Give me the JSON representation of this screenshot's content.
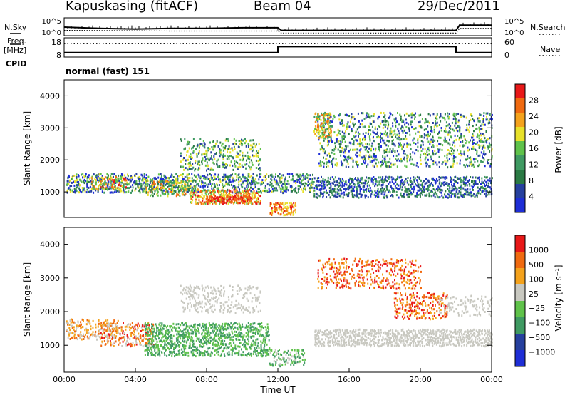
{
  "header": {
    "station": "Kapuskasing (fitACF)",
    "beam": "Beam 04",
    "date": "29/Dec/2011"
  },
  "side_labels": {
    "nsky": "N.Sky",
    "freq": "Freq.",
    "freq_unit": "[MHz]",
    "cpid": "CPID",
    "nsearch": "N.Search",
    "nave": "Nave"
  },
  "cpid_text": "normal (fast) 151",
  "colors": {
    "power": [
      "#1e2ed6",
      "#26409e",
      "#2a7a44",
      "#3f9a62",
      "#5fc24a",
      "#e8e12a",
      "#f4a21c",
      "#f06a10",
      "#e81818"
    ],
    "velocity": [
      "#e81818",
      "#f06a10",
      "#f4a21c",
      "#c8c8c0",
      "#5fc24a",
      "#3f9a62",
      "#26409e",
      "#1e2ed6"
    ]
  },
  "chart_data": [
    {
      "type": "line",
      "panel": "noise",
      "xlim": [
        0,
        24
      ],
      "left_ticks": [
        "10^5",
        "10^0"
      ],
      "right_ticks": [
        "10^5",
        "10^0"
      ],
      "series": [
        {
          "name": "N.Sky",
          "x": [
            0,
            2,
            4,
            6,
            8,
            10,
            12,
            12.2,
            14,
            16,
            18,
            20,
            22,
            22.2,
            24
          ],
          "y": [
            1.2,
            1.0,
            0.9,
            1.0,
            1.0,
            1.1,
            1.1,
            0.7,
            0.7,
            0.7,
            0.7,
            0.7,
            0.7,
            1.5,
            1.5
          ]
        },
        {
          "name": "N.Search",
          "x": [
            0,
            6,
            12,
            12.2,
            22,
            22.2,
            24
          ],
          "y": [
            0.7,
            0.6,
            0.6,
            0.3,
            0.3,
            1.0,
            1.0
          ]
        }
      ]
    },
    {
      "type": "line",
      "panel": "frequency",
      "xlim": [
        0,
        24
      ],
      "left_ticks": [
        "18",
        "8"
      ],
      "right_ticks": [
        "60",
        "0"
      ],
      "series": [
        {
          "name": "Freq.",
          "x": [
            0,
            12,
            12,
            22,
            22,
            24
          ],
          "y": [
            10,
            10,
            14,
            14,
            10,
            10
          ]
        },
        {
          "name": "Nave",
          "x": [
            0,
            24
          ],
          "y": [
            16,
            16
          ]
        }
      ]
    },
    {
      "type": "heatmap",
      "panel": "power",
      "xlabel": "",
      "ylabel": "Slant Range [km]",
      "xlim": [
        0,
        24
      ],
      "ylim": [
        200,
        4500
      ],
      "yticks": [
        "1000",
        "2000",
        "3000",
        "4000"
      ],
      "colorbar_label": "Power [dB]",
      "colorbar_ticks": [
        "4",
        "8",
        "12",
        "16",
        "20",
        "24",
        "28"
      ]
    },
    {
      "type": "heatmap",
      "panel": "velocity",
      "xlabel": "Time UT",
      "ylabel": "Slant Range [km]",
      "xlim": [
        0,
        24
      ],
      "ylim": [
        200,
        4500
      ],
      "yticks": [
        "1000",
        "2000",
        "3000",
        "4000"
      ],
      "xticks": [
        "00:00",
        "04:00",
        "08:00",
        "12:00",
        "16:00",
        "20:00",
        "00:00"
      ],
      "colorbar_label": "Velocity [m s⁻¹]",
      "colorbar_ticks": [
        "1000",
        "500",
        "100",
        "25",
        "−25",
        "−100",
        "−500",
        "−1000"
      ]
    }
  ]
}
